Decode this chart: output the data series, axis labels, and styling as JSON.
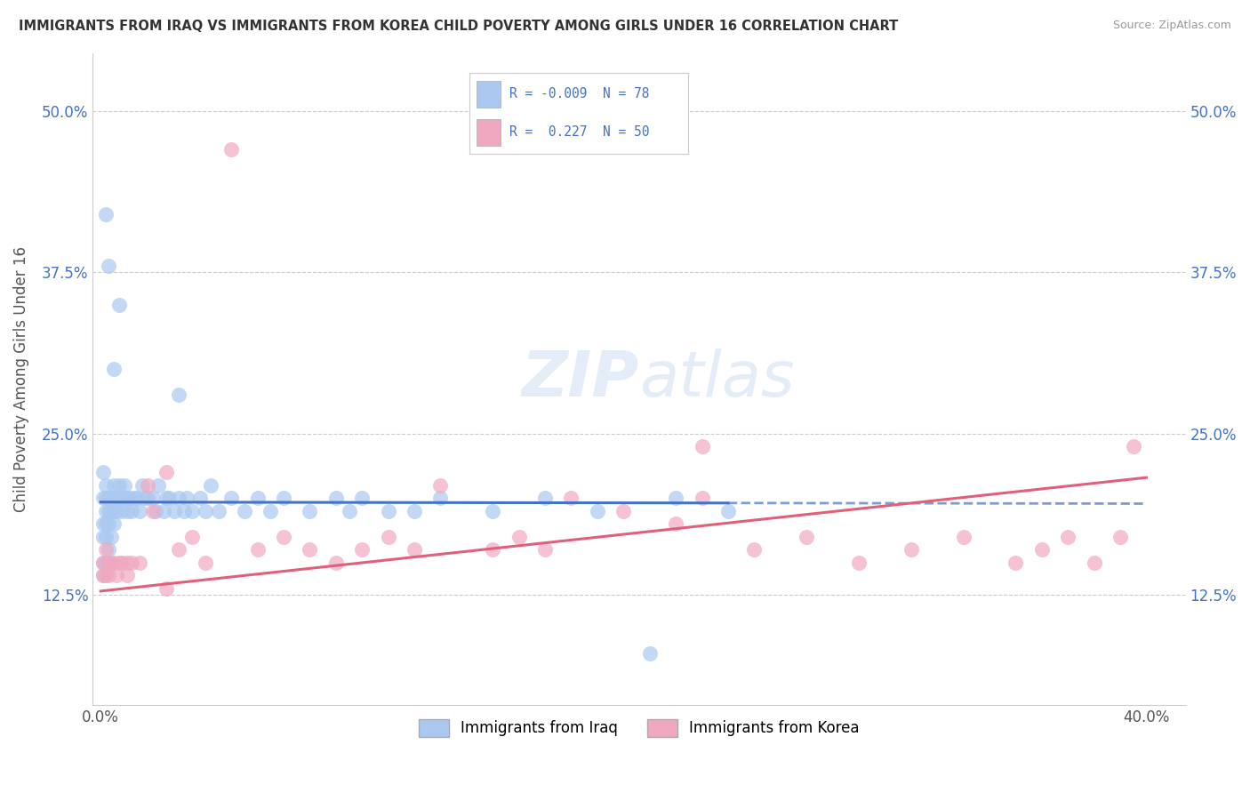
{
  "title": "IMMIGRANTS FROM IRAQ VS IMMIGRANTS FROM KOREA CHILD POVERTY AMONG GIRLS UNDER 16 CORRELATION CHART",
  "source": "Source: ZipAtlas.com",
  "ylabel": "Child Poverty Among Girls Under 16",
  "y_tick_vals": [
    0.125,
    0.25,
    0.375,
    0.5
  ],
  "y_tick_labs": [
    "12.5%",
    "25.0%",
    "37.5%",
    "50.0%"
  ],
  "x_ticks": [
    0.0,
    0.4
  ],
  "x_tick_labs": [
    "0.0%",
    "40.0%"
  ],
  "x_lim": [
    -0.003,
    0.415
  ],
  "y_lim": [
    0.04,
    0.545
  ],
  "legend_iraq": "Immigrants from Iraq",
  "legend_korea": "Immigrants from Korea",
  "R_iraq": "-0.009",
  "N_iraq": "78",
  "R_korea": "0.227",
  "N_korea": "50",
  "color_iraq": "#aac8f0",
  "color_korea": "#f0a8c0",
  "line_iraq_color": "#4472c4",
  "line_korea_color": "#e0607a",
  "watermark_color": "#c8daf0",
  "iraq_line_solid_end": 0.24,
  "iraq_line_y_intercept": 0.197,
  "iraq_line_slope": -0.003,
  "korea_line_y_intercept": 0.128,
  "korea_line_slope": 0.22,
  "iraq_x": [
    0.001,
    0.001,
    0.001,
    0.001,
    0.001,
    0.001,
    0.002,
    0.002,
    0.002,
    0.002,
    0.002,
    0.002,
    0.003,
    0.003,
    0.003,
    0.003,
    0.004,
    0.004,
    0.004,
    0.005,
    0.005,
    0.005,
    0.006,
    0.006,
    0.007,
    0.007,
    0.008,
    0.008,
    0.009,
    0.009,
    0.01,
    0.01,
    0.011,
    0.012,
    0.013,
    0.014,
    0.015,
    0.016,
    0.017,
    0.018,
    0.02,
    0.021,
    0.022,
    0.024,
    0.025,
    0.026,
    0.028,
    0.03,
    0.032,
    0.033,
    0.035,
    0.038,
    0.04,
    0.042,
    0.045,
    0.05,
    0.055,
    0.06,
    0.065,
    0.07,
    0.08,
    0.09,
    0.095,
    0.1,
    0.11,
    0.12,
    0.13,
    0.15,
    0.17,
    0.19,
    0.21,
    0.22,
    0.24,
    0.002,
    0.003,
    0.005,
    0.007,
    0.03
  ],
  "iraq_y": [
    0.22,
    0.2,
    0.18,
    0.17,
    0.15,
    0.14,
    0.21,
    0.2,
    0.19,
    0.18,
    0.17,
    0.15,
    0.2,
    0.19,
    0.18,
    0.16,
    0.2,
    0.19,
    0.17,
    0.21,
    0.19,
    0.18,
    0.2,
    0.19,
    0.21,
    0.2,
    0.2,
    0.19,
    0.21,
    0.2,
    0.2,
    0.19,
    0.2,
    0.19,
    0.2,
    0.2,
    0.19,
    0.21,
    0.2,
    0.2,
    0.2,
    0.19,
    0.21,
    0.19,
    0.2,
    0.2,
    0.19,
    0.2,
    0.19,
    0.2,
    0.19,
    0.2,
    0.19,
    0.21,
    0.19,
    0.2,
    0.19,
    0.2,
    0.19,
    0.2,
    0.19,
    0.2,
    0.19,
    0.2,
    0.19,
    0.19,
    0.2,
    0.19,
    0.2,
    0.19,
    0.08,
    0.2,
    0.19,
    0.42,
    0.38,
    0.3,
    0.35,
    0.28
  ],
  "korea_x": [
    0.001,
    0.001,
    0.002,
    0.002,
    0.003,
    0.003,
    0.004,
    0.005,
    0.006,
    0.007,
    0.008,
    0.01,
    0.012,
    0.015,
    0.018,
    0.02,
    0.025,
    0.03,
    0.035,
    0.04,
    0.05,
    0.06,
    0.07,
    0.08,
    0.09,
    0.1,
    0.11,
    0.12,
    0.13,
    0.15,
    0.16,
    0.17,
    0.18,
    0.2,
    0.22,
    0.23,
    0.25,
    0.27,
    0.29,
    0.31,
    0.33,
    0.35,
    0.36,
    0.37,
    0.38,
    0.39,
    0.395,
    0.01,
    0.025,
    0.23
  ],
  "korea_y": [
    0.15,
    0.14,
    0.16,
    0.14,
    0.15,
    0.14,
    0.15,
    0.15,
    0.14,
    0.15,
    0.15,
    0.14,
    0.15,
    0.15,
    0.21,
    0.19,
    0.22,
    0.16,
    0.17,
    0.15,
    0.47,
    0.16,
    0.17,
    0.16,
    0.15,
    0.16,
    0.17,
    0.16,
    0.21,
    0.16,
    0.17,
    0.16,
    0.2,
    0.19,
    0.18,
    0.2,
    0.16,
    0.17,
    0.15,
    0.16,
    0.17,
    0.15,
    0.16,
    0.17,
    0.15,
    0.17,
    0.24,
    0.15,
    0.13,
    0.24
  ]
}
